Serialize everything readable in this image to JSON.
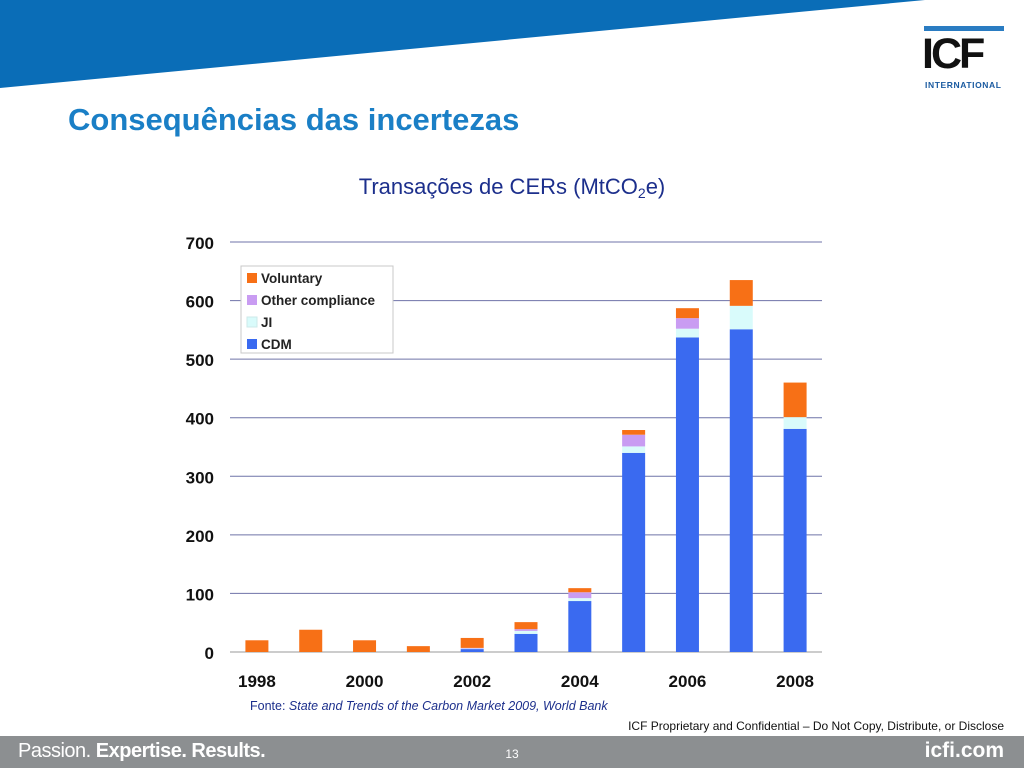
{
  "slide": {
    "title": "Consequências das incertezas",
    "source_label": "Fonte: ",
    "source_text": "State and Trends of the Carbon Market 2009, World Bank",
    "disclaimer": "ICF Proprietary and Confidential – Do Not Copy, Distribute, or Disclose",
    "page_number": "13"
  },
  "logo": {
    "text": "ICF",
    "subtext": "INTERNATIONAL"
  },
  "footer": {
    "tagline_1": "Passion. ",
    "tagline_2": "Expertise. Results.",
    "site": "icfi.com"
  },
  "colors": {
    "brand_blue": "#0a6db7",
    "title_blue": "#1a7fc6",
    "footer_gray": "#8c8f91"
  },
  "chart_data": {
    "type": "bar",
    "stacked": true,
    "title_main": "Transações de CERs (MtCO",
    "title_sub": "2",
    "title_end": "e)",
    "ylim": [
      0,
      700
    ],
    "yticks": [
      0,
      100,
      200,
      300,
      400,
      500,
      600,
      700
    ],
    "x_tick_labels": [
      "1998",
      "2000",
      "2002",
      "2004",
      "2006",
      "2008"
    ],
    "categories": [
      "1998",
      "1999",
      "2000",
      "2001",
      "2002",
      "2003",
      "2004",
      "2005",
      "2006",
      "2007",
      "2008"
    ],
    "grid": true,
    "legend_position": "top-left",
    "series": [
      {
        "name": "CDM",
        "color": "#3a6af0",
        "values": [
          0,
          0,
          0,
          0,
          5,
          31,
          87,
          340,
          537,
          551,
          381
        ]
      },
      {
        "name": "JI",
        "color": "#d9fbfb",
        "values": [
          0,
          0,
          0,
          0,
          1,
          5,
          5,
          11,
          15,
          40,
          20
        ]
      },
      {
        "name": "Other compliance",
        "color": "#c99cf2",
        "values": [
          0,
          0,
          0,
          0,
          1,
          3,
          10,
          20,
          18,
          0,
          0
        ]
      },
      {
        "name": "Voluntary",
        "color": "#f77016",
        "values": [
          20,
          38,
          20,
          10,
          17,
          12,
          7,
          8,
          17,
          44,
          59
        ]
      }
    ]
  }
}
